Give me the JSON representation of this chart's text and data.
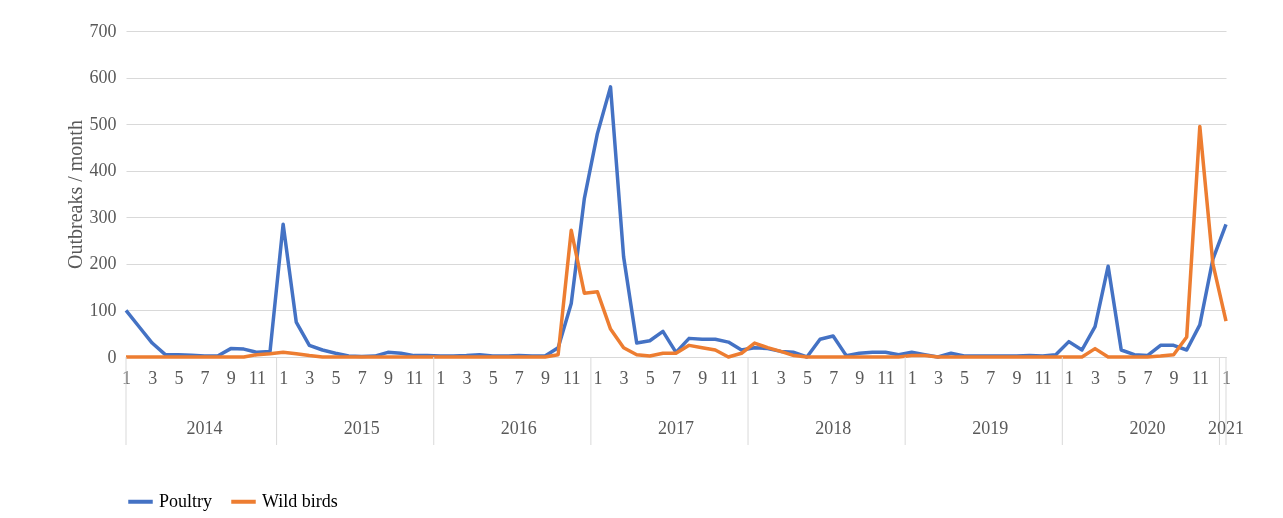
{
  "chart_data": {
    "type": "line",
    "ylabel": "Outbreaks / month",
    "x": [
      "2014-01",
      "2014-02",
      "2014-03",
      "2014-04",
      "2014-05",
      "2014-06",
      "2014-07",
      "2014-08",
      "2014-09",
      "2014-10",
      "2014-11",
      "2014-12",
      "2015-01",
      "2015-02",
      "2015-03",
      "2015-04",
      "2015-05",
      "2015-06",
      "2015-07",
      "2015-08",
      "2015-09",
      "2015-10",
      "2015-11",
      "2015-12",
      "2016-01",
      "2016-02",
      "2016-03",
      "2016-04",
      "2016-05",
      "2016-06",
      "2016-07",
      "2016-08",
      "2016-09",
      "2016-10",
      "2016-11",
      "2016-12",
      "2017-01",
      "2017-02",
      "2017-03",
      "2017-04",
      "2017-05",
      "2017-06",
      "2017-07",
      "2017-08",
      "2017-09",
      "2017-10",
      "2017-11",
      "2017-12",
      "2018-01",
      "2018-02",
      "2018-03",
      "2018-04",
      "2018-05",
      "2018-06",
      "2018-07",
      "2018-08",
      "2018-09",
      "2018-10",
      "2018-11",
      "2018-12",
      "2019-01",
      "2019-02",
      "2019-03",
      "2019-04",
      "2019-05",
      "2019-06",
      "2019-07",
      "2019-08",
      "2019-09",
      "2019-10",
      "2019-11",
      "2019-12",
      "2020-01",
      "2020-02",
      "2020-03",
      "2020-04",
      "2020-05",
      "2020-06",
      "2020-07",
      "2020-08",
      "2020-09",
      "2020-10",
      "2020-11",
      "2020-12",
      "2021-01"
    ],
    "series": [
      {
        "name": "Poultry",
        "color": "#4472c4",
        "values": [
          100,
          65,
          30,
          5,
          5,
          4,
          2,
          2,
          18,
          17,
          10,
          12,
          285,
          75,
          25,
          15,
          8,
          2,
          1,
          2,
          10,
          8,
          3,
          3,
          2,
          2,
          3,
          5,
          2,
          2,
          3,
          2,
          2,
          20,
          115,
          340,
          480,
          580,
          215,
          30,
          35,
          55,
          10,
          40,
          38,
          38,
          32,
          15,
          20,
          18,
          12,
          10,
          0,
          38,
          45,
          3,
          8,
          10,
          10,
          5,
          10,
          5,
          0,
          8,
          2,
          2,
          2,
          2,
          2,
          3,
          2,
          5,
          33,
          15,
          65,
          195,
          15,
          5,
          3,
          25,
          25,
          15,
          69,
          210,
          285
        ]
      },
      {
        "name": "Wild birds",
        "color": "#ed7d31",
        "values": [
          0,
          0,
          0,
          0,
          0,
          0,
          0,
          0,
          0,
          0,
          5,
          7,
          10,
          7,
          3,
          0,
          0,
          0,
          0,
          0,
          0,
          0,
          0,
          0,
          0,
          0,
          0,
          0,
          0,
          0,
          0,
          0,
          0,
          5,
          272,
          137,
          140,
          60,
          20,
          5,
          2,
          8,
          8,
          25,
          20,
          15,
          0,
          8,
          30,
          20,
          12,
          3,
          0,
          0,
          0,
          0,
          0,
          0,
          0,
          0,
          3,
          3,
          0,
          0,
          0,
          0,
          0,
          0,
          0,
          0,
          0,
          0,
          0,
          0,
          18,
          0,
          0,
          0,
          0,
          2,
          5,
          43,
          495,
          200,
          77
        ]
      }
    ],
    "xticks": [
      {
        "value": "2014-01",
        "label": "1"
      },
      {
        "value": "2014-03",
        "label": "3"
      },
      {
        "value": "2014-05",
        "label": "5"
      },
      {
        "value": "2014-07",
        "label": "7"
      },
      {
        "value": "2014-09",
        "label": "9"
      },
      {
        "value": "2014-11",
        "label": "11"
      },
      {
        "value": "2015-01",
        "label": "1"
      },
      {
        "value": "2015-03",
        "label": "3"
      },
      {
        "value": "2015-05",
        "label": "5"
      },
      {
        "value": "2015-07",
        "label": "7"
      },
      {
        "value": "2015-09",
        "label": "9"
      },
      {
        "value": "2015-11",
        "label": "11"
      },
      {
        "value": "2016-01",
        "label": "1"
      },
      {
        "value": "2016-03",
        "label": "3"
      },
      {
        "value": "2016-05",
        "label": "5"
      },
      {
        "value": "2016-07",
        "label": "7"
      },
      {
        "value": "2016-09",
        "label": "9"
      },
      {
        "value": "2016-11",
        "label": "11"
      },
      {
        "value": "2017-01",
        "label": "1"
      },
      {
        "value": "2017-03",
        "label": "3"
      },
      {
        "value": "2017-05",
        "label": "5"
      },
      {
        "value": "2017-07",
        "label": "7"
      },
      {
        "value": "2017-09",
        "label": "9"
      },
      {
        "value": "2017-11",
        "label": "11"
      },
      {
        "value": "2018-01",
        "label": "1"
      },
      {
        "value": "2018-03",
        "label": "3"
      },
      {
        "value": "2018-05",
        "label": "5"
      },
      {
        "value": "2018-07",
        "label": "7"
      },
      {
        "value": "2018-09",
        "label": "9"
      },
      {
        "value": "2018-11",
        "label": "11"
      },
      {
        "value": "2019-01",
        "label": "1"
      },
      {
        "value": "2019-03",
        "label": "3"
      },
      {
        "value": "2019-05",
        "label": "5"
      },
      {
        "value": "2019-07",
        "label": "7"
      },
      {
        "value": "2019-09",
        "label": "9"
      },
      {
        "value": "2019-11",
        "label": "11"
      },
      {
        "value": "2020-01",
        "label": "1"
      },
      {
        "value": "2020-03",
        "label": "3"
      },
      {
        "value": "2020-05",
        "label": "5"
      },
      {
        "value": "2020-07",
        "label": "7"
      },
      {
        "value": "2020-09",
        "label": "9"
      },
      {
        "value": "2020-11",
        "label": "11"
      },
      {
        "value": "2021-01",
        "label": "1"
      }
    ],
    "x2ticks": [
      {
        "value": "2014-07",
        "label": "2014"
      },
      {
        "value": "2015-07",
        "label": "2015"
      },
      {
        "value": "2016-07",
        "label": "2016"
      },
      {
        "value": "2017-07",
        "label": "2017"
      },
      {
        "value": "2018-07",
        "label": "2018"
      },
      {
        "value": "2019-07",
        "label": "2019"
      },
      {
        "value": "2020-07",
        "label": "2020"
      },
      {
        "value": "2021-01",
        "label": "2021"
      }
    ],
    "xlim": [
      "2014-01",
      "2021-01"
    ],
    "x2lim": [
      "2014-01",
      "2021-01"
    ],
    "ylim": [
      0,
      700
    ],
    "yticks": [
      0,
      100,
      200,
      300,
      400,
      500,
      600,
      700
    ],
    "grid": "y",
    "legend": "bottom",
    "line_style": "solid",
    "marker": "none"
  }
}
